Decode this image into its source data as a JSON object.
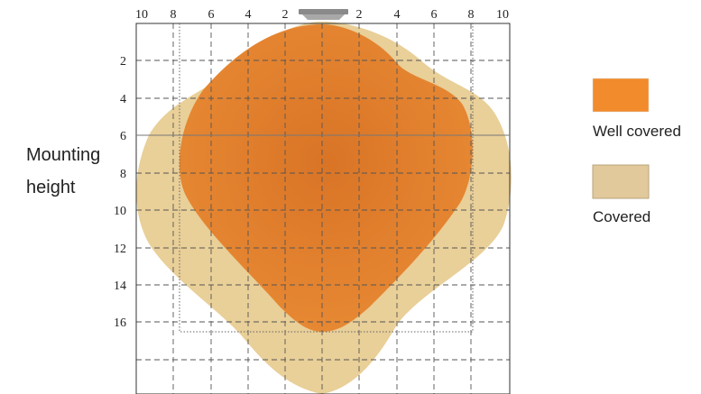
{
  "y_label_lines": [
    "Mounting",
    "height"
  ],
  "x_tick_labels": [
    "10",
    "8",
    "6",
    "4",
    "2",
    "2",
    "4",
    "6",
    "8",
    "10"
  ],
  "y_tick_labels": [
    "2",
    "4",
    "6",
    "8",
    "10",
    "12",
    "14",
    "16"
  ],
  "legend": [
    {
      "label": "Well covered",
      "color": "#F28B2C"
    },
    {
      "label": "Covered",
      "color": "#E2C99B"
    }
  ],
  "colors": {
    "well_fill": "#E67C2B",
    "covered_fill": "#E9CF98",
    "grid": "#555555",
    "frame": "#333333",
    "sensor": "#9a9a9a"
  },
  "icon": "ceiling-sensor-icon"
}
